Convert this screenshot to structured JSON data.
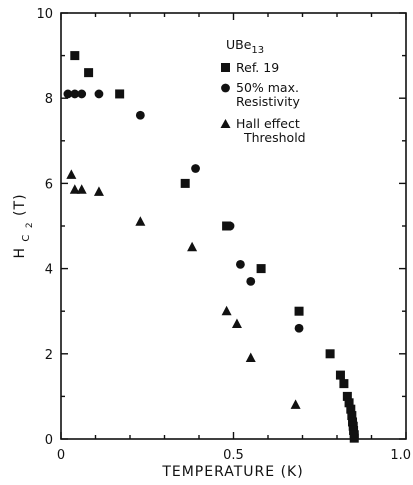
{
  "chart_data": {
    "type": "scatter",
    "title": "",
    "xlabel": "TEMPERATURE (K)",
    "ylabel": "H",
    "ylabel_sub": "C",
    "ylabel_sub2": "2",
    "ylabel_suffix": "(T)",
    "xlim": [
      0,
      1.0
    ],
    "ylim": [
      0,
      10
    ],
    "xticks": [
      0,
      0.5,
      1.0
    ],
    "xtick_labels": [
      "0",
      "0.5",
      "1.0"
    ],
    "yticks": [
      0,
      2,
      4,
      6,
      8,
      10
    ],
    "ytick_labels": [
      "0",
      "2",
      "4",
      "6",
      "8",
      "10"
    ],
    "grid": false,
    "legend": {
      "placement": "top-right",
      "title": "UBe",
      "title_sub": "13",
      "entries": [
        {
          "series": "ref19",
          "lines": [
            "Ref. 19"
          ]
        },
        {
          "series": "resistivity",
          "lines": [
            "50% max.",
            "Resistivity"
          ]
        },
        {
          "series": "hall",
          "lines": [
            "Hall effect",
            "Threshold"
          ]
        }
      ]
    },
    "series": [
      {
        "key": "ref19",
        "name": "Ref. 19",
        "marker": "square",
        "color": "#111111",
        "points": [
          [
            0.04,
            9.0
          ],
          [
            0.08,
            8.6
          ],
          [
            0.17,
            8.1
          ],
          [
            0.36,
            6.0
          ],
          [
            0.48,
            5.0
          ],
          [
            0.58,
            4.0
          ],
          [
            0.69,
            3.0
          ],
          [
            0.78,
            2.0
          ],
          [
            0.81,
            1.5
          ],
          [
            0.82,
            1.3
          ],
          [
            0.83,
            1.0
          ],
          [
            0.835,
            0.85
          ],
          [
            0.84,
            0.7
          ],
          [
            0.843,
            0.55
          ],
          [
            0.845,
            0.4
          ],
          [
            0.847,
            0.3
          ],
          [
            0.848,
            0.2
          ],
          [
            0.85,
            0.1
          ],
          [
            0.85,
            0.02
          ]
        ]
      },
      {
        "key": "resistivity",
        "name": "50% max. Resistivity",
        "marker": "circle",
        "color": "#111111",
        "points": [
          [
            0.02,
            8.1
          ],
          [
            0.04,
            8.1
          ],
          [
            0.06,
            8.1
          ],
          [
            0.11,
            8.1
          ],
          [
            0.23,
            7.6
          ],
          [
            0.39,
            6.35
          ],
          [
            0.49,
            5.0
          ],
          [
            0.52,
            4.1
          ],
          [
            0.55,
            3.7
          ],
          [
            0.69,
            2.6
          ]
        ]
      },
      {
        "key": "hall",
        "name": "Hall effect Threshold",
        "marker": "triangle",
        "color": "#111111",
        "points": [
          [
            0.03,
            6.2
          ],
          [
            0.04,
            5.85
          ],
          [
            0.06,
            5.85
          ],
          [
            0.11,
            5.8
          ],
          [
            0.23,
            5.1
          ],
          [
            0.38,
            4.5
          ],
          [
            0.48,
            3.0
          ],
          [
            0.51,
            2.7
          ],
          [
            0.55,
            1.9
          ],
          [
            0.68,
            0.8
          ]
        ]
      }
    ]
  }
}
